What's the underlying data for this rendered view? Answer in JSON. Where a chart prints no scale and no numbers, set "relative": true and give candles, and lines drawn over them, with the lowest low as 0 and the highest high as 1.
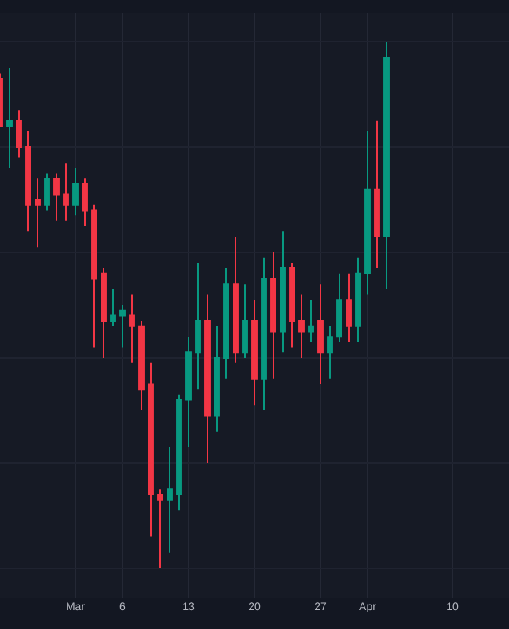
{
  "chart_data": {
    "type": "candlestick",
    "relative": true,
    "grid": true,
    "x": [
      "--02-21",
      "--02-22",
      "--02-23",
      "--02-24",
      "--02-25",
      "--02-26",
      "--02-27",
      "--02-28",
      "--03-01",
      "--03-02",
      "--03-03",
      "--03-04",
      "--03-05",
      "--03-06",
      "--03-07",
      "--03-08",
      "--03-09",
      "--03-10",
      "--03-11",
      "--03-12",
      "--03-13",
      "--03-14",
      "--03-15",
      "--03-16",
      "--03-17",
      "--03-18",
      "--03-19",
      "--03-20",
      "--03-21",
      "--03-22",
      "--03-23",
      "--03-24",
      "--03-25",
      "--03-26",
      "--03-27",
      "--03-28",
      "--03-29",
      "--03-30",
      "--03-31",
      "--04-01",
      "--04-02",
      "--04-03"
    ],
    "ohlc": [
      [
        0.93,
        0.94,
        0.84,
        0.84
      ],
      [
        0.84,
        0.95,
        0.76,
        0.85
      ],
      [
        0.85,
        0.87,
        0.78,
        0.8
      ],
      [
        0.8,
        0.83,
        0.64,
        0.69
      ],
      [
        0.7,
        0.74,
        0.61,
        0.69
      ],
      [
        0.69,
        0.75,
        0.68,
        0.74
      ],
      [
        0.74,
        0.75,
        0.66,
        0.71
      ],
      [
        0.71,
        0.77,
        0.66,
        0.69
      ],
      [
        0.69,
        0.76,
        0.67,
        0.73
      ],
      [
        0.73,
        0.74,
        0.65,
        0.68
      ],
      [
        0.68,
        0.69,
        0.42,
        0.55
      ],
      [
        0.56,
        0.57,
        0.4,
        0.47
      ],
      [
        0.47,
        0.53,
        0.46,
        0.48
      ],
      [
        0.48,
        0.5,
        0.42,
        0.49
      ],
      [
        0.48,
        0.52,
        0.39,
        0.46
      ],
      [
        0.46,
        0.47,
        0.3,
        0.34
      ],
      [
        0.35,
        0.39,
        0.06,
        0.14
      ],
      [
        0.14,
        0.15,
        0,
        0.13
      ],
      [
        0.13,
        0.23,
        0.03,
        0.15
      ],
      [
        0.14,
        0.33,
        0.11,
        0.32
      ],
      [
        0.32,
        0.44,
        0.23,
        0.41
      ],
      [
        0.41,
        0.58,
        0.34,
        0.47
      ],
      [
        0.47,
        0.52,
        0.2,
        0.29
      ],
      [
        0.29,
        0.46,
        0.26,
        0.4
      ],
      [
        0.4,
        0.57,
        0.36,
        0.54
      ],
      [
        0.54,
        0.63,
        0.39,
        0.41
      ],
      [
        0.41,
        0.54,
        0.4,
        0.47
      ],
      [
        0.47,
        0.51,
        0.31,
        0.36
      ],
      [
        0.36,
        0.59,
        0.3,
        0.55
      ],
      [
        0.55,
        0.6,
        0.36,
        0.45
      ],
      [
        0.45,
        0.64,
        0.41,
        0.57
      ],
      [
        0.57,
        0.58,
        0.42,
        0.47
      ],
      [
        0.47,
        0.52,
        0.4,
        0.45
      ],
      [
        0.45,
        0.51,
        0.43,
        0.46
      ],
      [
        0.47,
        0.54,
        0.35,
        0.41
      ],
      [
        0.41,
        0.46,
        0.36,
        0.44
      ],
      [
        0.44,
        0.56,
        0.43,
        0.51
      ],
      [
        0.51,
        0.56,
        0.43,
        0.46
      ],
      [
        0.46,
        0.59,
        0.43,
        0.56
      ],
      [
        0.56,
        0.83,
        0.52,
        0.72
      ],
      [
        0.72,
        0.85,
        0.57,
        0.63
      ],
      [
        0.63,
        1,
        0.53,
        0.97
      ]
    ],
    "colors": [
      "#f23645",
      "#089981",
      "#f23645",
      "#f23645",
      "#f23645",
      "#089981",
      "#f23645",
      "#f23645",
      "#089981",
      "#f23645",
      "#f23645",
      "#f23645",
      "#089981",
      "#089981",
      "#f23645",
      "#f23645",
      "#f23645",
      "#f23645",
      "#089981",
      "#089981",
      "#089981",
      "#089981",
      "#f23645",
      "#089981",
      "#089981",
      "#f23645",
      "#089981",
      "#f23645",
      "#089981",
      "#f23645",
      "#089981",
      "#f23645",
      "#f23645",
      "#089981",
      "#f23645",
      "#089981",
      "#089981",
      "#f23645",
      "#089981",
      "#089981",
      "#f23645",
      "#089981"
    ],
    "xlim": [
      "--02-21",
      "--04-16"
    ],
    "xticks": [
      {
        "value": "--03-01",
        "label": "Mar"
      },
      {
        "value": "--03-06",
        "label": "6"
      },
      {
        "value": "--03-13",
        "label": "13"
      },
      {
        "value": "--03-20",
        "label": "20"
      },
      {
        "value": "--03-27",
        "label": "27"
      },
      {
        "value": "--04-01",
        "label": "Apr"
      },
      {
        "value": "--04-10",
        "label": "10"
      }
    ]
  }
}
